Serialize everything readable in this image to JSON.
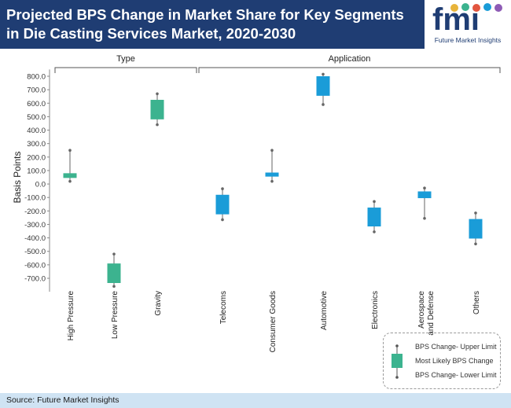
{
  "header": {
    "title": "Projected BPS Change in Market Share for Key Segments in Die Casting Services Market, 2020-2030",
    "background": "#1f3d73"
  },
  "logo": {
    "mark": "fmi",
    "name": "Future Market Insights"
  },
  "footer": {
    "source": "Source: Future Market Insights"
  },
  "legend": {
    "upper": "BPS Change- Upper Limit",
    "likely": "Most Likely BPS Change",
    "lower": "BPS Change- Lower Limit"
  },
  "chart_data": {
    "type": "box",
    "ylabel": "Basis Points",
    "ylim": [
      -800,
      850
    ],
    "yticks": [
      800,
      700,
      600,
      500,
      400,
      300,
      200,
      100,
      0,
      -100,
      -200,
      -300,
      -400,
      -500,
      -600,
      -700
    ],
    "tick_decimals": 1,
    "groups": [
      {
        "label": "Type",
        "categories": [
          "High Pressure",
          "Low Pressure",
          "Gravity"
        ]
      },
      {
        "label": "Application",
        "categories": [
          "Telecoms",
          "Consumer Goods",
          "Automotive",
          "Electronics",
          "Aerospace and Defense",
          "Others"
        ]
      }
    ],
    "series": [
      {
        "category": "High Pressure",
        "group": "Type",
        "upper": 250,
        "box_high": 80,
        "box_low": 45,
        "lower": 20,
        "color": "#3cb38f"
      },
      {
        "category": "Low Pressure",
        "group": "Type",
        "upper": -520,
        "box_high": -590,
        "box_low": -735,
        "lower": -760,
        "color": "#3cb38f"
      },
      {
        "category": "Gravity",
        "group": "Type",
        "upper": 670,
        "box_high": 625,
        "box_low": 480,
        "lower": 440,
        "color": "#3cb38f"
      },
      {
        "category": "Telecoms",
        "group": "Application",
        "upper": -35,
        "box_high": -80,
        "box_low": -225,
        "lower": -265,
        "color": "#1a9cd8"
      },
      {
        "category": "Consumer Goods",
        "group": "Application",
        "upper": 250,
        "box_high": 85,
        "box_low": 55,
        "lower": 20,
        "color": "#1a9cd8"
      },
      {
        "category": "Automotive",
        "group": "Application",
        "upper": 815,
        "box_high": 800,
        "box_low": 655,
        "lower": 590,
        "color": "#1a9cd8"
      },
      {
        "category": "Electronics",
        "group": "Application",
        "upper": -130,
        "box_high": -175,
        "box_low": -315,
        "lower": -355,
        "color": "#1a9cd8"
      },
      {
        "category": "Aerospace and Defense",
        "group": "Application",
        "upper": -30,
        "box_high": -55,
        "box_low": -105,
        "lower": -255,
        "color": "#1a9cd8"
      },
      {
        "category": "Others",
        "group": "Application",
        "upper": -215,
        "box_high": -260,
        "box_low": -405,
        "lower": -445,
        "color": "#1a9cd8"
      }
    ],
    "grid": false,
    "legend_position": "bottom-right"
  }
}
